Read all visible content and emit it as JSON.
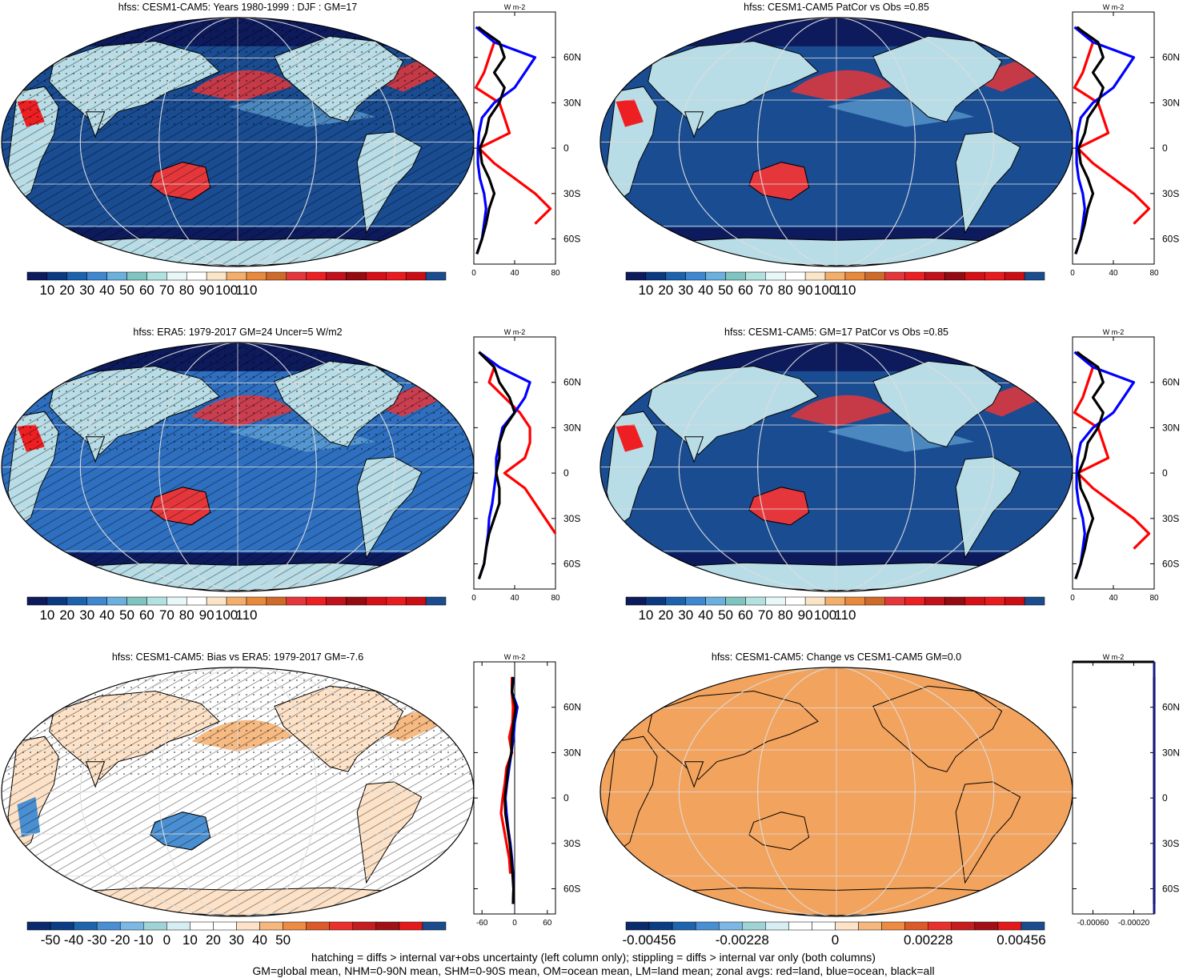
{
  "colors": {
    "palette_abs": [
      "#0d1a5c",
      "#0b3a82",
      "#1c62ad",
      "#3f88cf",
      "#6cb0de",
      "#7fc4c0",
      "#b2e2e0",
      "#e8f7f7",
      "#ffffff",
      "#fbe5c8",
      "#f4ae6c",
      "#e8893c",
      "#cf6a2a",
      "#e5373b",
      "#ee1f22",
      "#c3111b",
      "#960a12",
      "#d70f17",
      "#ea1b1f",
      "#cc0e14",
      "#1b4d8e"
    ],
    "palette_diff": [
      "#0b2a6b",
      "#0c3c84",
      "#1f65ad",
      "#4a8fd1",
      "#7db7e3",
      "#9fd3d6",
      "#d6eef2",
      "#ffffff",
      "#ffffff",
      "#fde2c7",
      "#f6b77e",
      "#ed8b43",
      "#dc5a2a",
      "#e8312c",
      "#c51d1f",
      "#a11016",
      "#e31a1c",
      "#1b4d8e"
    ],
    "ocean": "#1a4c92",
    "ocean_mid": "#2e6fbf",
    "land_pale": "#b9dde6",
    "flat_fill": "#f2a35e",
    "zonal_land": "#ff0000",
    "zonal_ocean": "#0000ff",
    "zonal_all": "#000000"
  },
  "panels": [
    {
      "title": "hfss: CESM1-CAM5: Years 1980-1999 : DJF : GM=17",
      "map": {
        "style": "abs",
        "hatching": true,
        "stippling": true
      },
      "colorbar": {
        "labels": [
          "10",
          "20",
          "30",
          "40",
          "50",
          "60",
          "70",
          "80",
          "90",
          "100",
          "110"
        ],
        "palette": "palette_abs"
      },
      "zonal": {
        "units_label": "W m-2",
        "xlim": [
          0,
          80
        ],
        "xticks": [
          "0",
          "40",
          "80"
        ],
        "xvals": [
          0,
          40,
          80
        ],
        "lat_labels": [
          "60N",
          "30N",
          "0",
          "30S",
          "60S"
        ],
        "shape": "a"
      }
    },
    {
      "title": "hfss: CESM1-CAM5 PatCor vs Obs =0.85",
      "map": {
        "style": "abs",
        "hatching": false,
        "stippling": false
      },
      "colorbar": {
        "labels": [
          "10",
          "20",
          "30",
          "40",
          "50",
          "60",
          "70",
          "80",
          "90",
          "100",
          "110"
        ],
        "palette": "palette_abs"
      },
      "zonal": {
        "units_label": "W m-2",
        "xlim": [
          0,
          80
        ],
        "xticks": [
          "0",
          "40",
          "80"
        ],
        "xvals": [
          0,
          40,
          80
        ],
        "lat_labels": [
          "60N",
          "30N",
          "0",
          "30S",
          "60S"
        ],
        "shape": "a"
      }
    },
    {
      "title": "hfss: ERA5: 1979-2017 GM=24 Uncer=5 W/m2",
      "map": {
        "style": "era",
        "hatching": true,
        "stippling": true
      },
      "colorbar": {
        "labels": [
          "10",
          "20",
          "30",
          "40",
          "50",
          "60",
          "70",
          "80",
          "90",
          "100",
          "110"
        ],
        "palette": "palette_abs"
      },
      "zonal": {
        "units_label": "W m-2",
        "xlim": [
          0,
          80
        ],
        "xticks": [
          "0",
          "40",
          "80"
        ],
        "xvals": [
          0,
          40,
          80
        ],
        "lat_labels": [
          "60N",
          "30N",
          "0",
          "30S",
          "60S"
        ],
        "shape": "b"
      }
    },
    {
      "title": "hfss: CESM1-CAM5: GM=17 PatCor vs Obs =0.85",
      "map": {
        "style": "abs",
        "hatching": false,
        "stippling": false
      },
      "colorbar": {
        "labels": [
          "10",
          "20",
          "30",
          "40",
          "50",
          "60",
          "70",
          "80",
          "90",
          "100",
          "110"
        ],
        "palette": "palette_abs"
      },
      "zonal": {
        "units_label": "W m-2",
        "xlim": [
          0,
          80
        ],
        "xticks": [
          "0",
          "40",
          "80"
        ],
        "xvals": [
          0,
          40,
          80
        ],
        "lat_labels": [
          "60N",
          "30N",
          "0",
          "30S",
          "60S"
        ],
        "shape": "a"
      }
    },
    {
      "title": "hfss: CESM1-CAM5: Bias vs ERA5: 1979-2017 GM=-7.6",
      "map": {
        "style": "bias",
        "hatching": true,
        "stippling": true
      },
      "colorbar": {
        "labels": [
          "-50",
          "-40",
          "-30",
          "-20",
          "-10",
          "0",
          "10",
          "20",
          "30",
          "40",
          "50"
        ],
        "palette": "palette_diff"
      },
      "zonal": {
        "units_label": "W m-2",
        "xlim": [
          -75,
          75
        ],
        "xticks": [
          "-60",
          "0",
          "60"
        ],
        "xvals": [
          -60,
          0,
          60
        ],
        "lat_labels": [
          "60N",
          "30N",
          "0",
          "30S",
          "60S"
        ],
        "shape": "c"
      }
    },
    {
      "title": "hfss: CESM1-CAM5: Change vs CESM1-CAM5 GM=0.0",
      "map": {
        "style": "flat",
        "hatching": false,
        "stippling": false
      },
      "colorbar": {
        "labels": [
          "-0.00456",
          "-0.00228",
          "0",
          "0.00228",
          "0.00456"
        ],
        "palette": "palette_diff"
      },
      "zonal": {
        "units_label": "W m-2",
        "xlim": [
          -0.0008,
          0.0
        ],
        "xticks": [
          "-0.00060",
          "-0.00020"
        ],
        "xvals": [
          -0.0006,
          -0.0002
        ],
        "lat_labels": [
          "60N",
          "30N",
          "0",
          "30S",
          "60S"
        ],
        "shape": "d"
      }
    }
  ],
  "chart_data": [
    {
      "type": "heatmap",
      "title": "hfss: CESM1-CAM5: Years 1980-1999 : DJF : GM=17",
      "colorbar_ticks": [
        10,
        20,
        30,
        40,
        50,
        60,
        70,
        80,
        90,
        100,
        110
      ],
      "zonal_mean": {
        "xlim": [
          0,
          80
        ],
        "lat": [
          80,
          70,
          60,
          50,
          40,
          30,
          20,
          10,
          0,
          -10,
          -20,
          -30,
          -40,
          -50,
          -60,
          -70
        ],
        "series": [
          {
            "name": "land",
            "values": [
              5,
              20,
              15,
              10,
              2,
              25,
              30,
              35,
              5,
              20,
              40,
              60,
              75,
              60,
              null,
              2
            ]
          },
          {
            "name": "ocean",
            "values": [
              2,
              20,
              60,
              50,
              40,
              20,
              8,
              5,
              4,
              4,
              6,
              10,
              12,
              10,
              8,
              3
            ]
          },
          {
            "name": "all",
            "values": [
              4,
              25,
              30,
              20,
              30,
              25,
              15,
              12,
              6,
              8,
              15,
              20,
              15,
              12,
              8,
              3
            ]
          }
        ]
      }
    },
    {
      "type": "heatmap",
      "title": "hfss: CESM1-CAM5 PatCor vs Obs =0.85",
      "colorbar_ticks": [
        10,
        20,
        30,
        40,
        50,
        60,
        70,
        80,
        90,
        100,
        110
      ],
      "zonal_mean": {
        "xlim": [
          0,
          80
        ],
        "lat": [
          80,
          70,
          60,
          50,
          40,
          30,
          20,
          10,
          0,
          -10,
          -20,
          -30,
          -40,
          -50,
          -60,
          -70
        ],
        "series": [
          {
            "name": "land",
            "values": [
              5,
              20,
              15,
              10,
              2,
              25,
              30,
              35,
              5,
              20,
              40,
              60,
              75,
              60,
              null,
              2
            ]
          },
          {
            "name": "ocean",
            "values": [
              2,
              20,
              60,
              50,
              40,
              20,
              8,
              5,
              4,
              4,
              6,
              10,
              12,
              10,
              8,
              3
            ]
          },
          {
            "name": "all",
            "values": [
              4,
              25,
              30,
              20,
              30,
              25,
              15,
              12,
              6,
              8,
              15,
              20,
              15,
              12,
              8,
              3
            ]
          }
        ]
      }
    },
    {
      "type": "heatmap",
      "title": "hfss: ERA5: 1979-2017 GM=24 Uncer=5 W/m2",
      "colorbar_ticks": [
        10,
        20,
        30,
        40,
        50,
        60,
        70,
        80,
        90,
        100,
        110
      ],
      "zonal_mean": {
        "xlim": [
          0,
          80
        ],
        "lat": [
          80,
          70,
          60,
          50,
          40,
          30,
          20,
          10,
          0,
          -10,
          -20,
          -30,
          -40,
          -50,
          -60,
          -70
        ],
        "series": [
          {
            "name": "land",
            "values": [
              5,
              20,
              15,
              30,
              45,
              55,
              55,
              50,
              30,
              50,
              60,
              70,
              80,
              null,
              null,
              2
            ]
          },
          {
            "name": "ocean",
            "values": [
              5,
              25,
              55,
              50,
              40,
              28,
              25,
              22,
              22,
              20,
              18,
              15,
              14,
              12,
              10,
              5
            ]
          },
          {
            "name": "all",
            "values": [
              5,
              20,
              25,
              35,
              40,
              30,
              25,
              25,
              22,
              25,
              25,
              20,
              15,
              12,
              10,
              5
            ]
          }
        ]
      }
    },
    {
      "type": "heatmap",
      "title": "hfss: CESM1-CAM5: GM=17 PatCor vs Obs =0.85",
      "colorbar_ticks": [
        10,
        20,
        30,
        40,
        50,
        60,
        70,
        80,
        90,
        100,
        110
      ],
      "zonal_mean": {
        "xlim": [
          0,
          80
        ],
        "lat": [
          80,
          70,
          60,
          50,
          40,
          30,
          20,
          10,
          0,
          -10,
          -20,
          -30,
          -40,
          -50,
          -60,
          -70
        ],
        "series": [
          {
            "name": "land",
            "values": [
              5,
              20,
              15,
              10,
              2,
              25,
              30,
              35,
              5,
              20,
              40,
              60,
              75,
              60,
              null,
              2
            ]
          },
          {
            "name": "ocean",
            "values": [
              2,
              20,
              60,
              50,
              40,
              20,
              8,
              5,
              4,
              4,
              6,
              10,
              12,
              10,
              8,
              3
            ]
          },
          {
            "name": "all",
            "values": [
              4,
              25,
              30,
              20,
              30,
              25,
              15,
              12,
              6,
              8,
              15,
              20,
              15,
              12,
              8,
              3
            ]
          }
        ]
      }
    },
    {
      "type": "heatmap",
      "title": "hfss: CESM1-CAM5: Bias vs ERA5: 1979-2017 GM=-7.6",
      "colorbar_ticks": [
        -50,
        -40,
        -30,
        -20,
        -10,
        0,
        10,
        20,
        30,
        40,
        50
      ],
      "zonal_mean": {
        "xlim": [
          -75,
          75
        ],
        "lat": [
          80,
          70,
          60,
          50,
          40,
          30,
          20,
          10,
          0,
          -10,
          -20,
          -30,
          -40,
          -50,
          -60,
          -70
        ],
        "series": [
          {
            "name": "land",
            "values": [
              -5,
              -5,
              -3,
              -4,
              -10,
              -5,
              -15,
              -18,
              -22,
              -25,
              -20,
              -15,
              -10,
              -8,
              null,
              -4
            ]
          },
          {
            "name": "ocean",
            "values": [
              -2,
              -5,
              5,
              0,
              -2,
              -6,
              -10,
              -14,
              -17,
              -15,
              -12,
              -8,
              -5,
              -3,
              -2,
              -3
            ]
          },
          {
            "name": "all",
            "values": [
              -3,
              -5,
              2,
              -2,
              -5,
              -6,
              -12,
              -15,
              -18,
              -17,
              -13,
              -9,
              -6,
              -4,
              -2,
              -3
            ]
          }
        ]
      }
    },
    {
      "type": "heatmap",
      "title": "hfss: CESM1-CAM5: Change vs CESM1-CAM5 GM=0.0",
      "colorbar_ticks": [
        -0.00456,
        -0.00228,
        0,
        0.00228,
        0.00456
      ],
      "zonal_mean": {
        "xlim": [
          -0.0008,
          0.0
        ],
        "lat": [
          80,
          -70
        ],
        "series": [
          {
            "name": "all",
            "values": [
              0,
              0
            ]
          }
        ]
      }
    }
  ],
  "caption": {
    "line1": "hatching = diffs > internal var+obs uncertainty (left column only); stippling = diffs > internal var only (both columns)",
    "line2": "GM=global mean, NHM=0-90N mean, SHM=0-90S mean, OM=ocean mean, LM=land mean; zonal avgs: red=land, blue=ocean, black=all"
  }
}
